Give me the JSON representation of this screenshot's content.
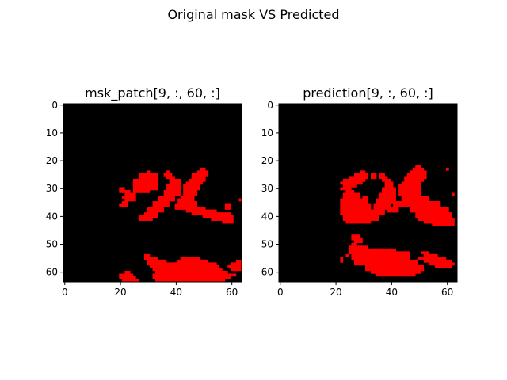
{
  "figure": {
    "suptitle": "Original mask VS Predicted"
  },
  "chart_data": [
    {
      "type": "heatmap",
      "title": "msk_patch[9, :, 60, :]",
      "grid_size": 64,
      "background_color": "#000000",
      "mask_color": "#ff0000",
      "xticks": [
        0,
        20,
        40,
        60
      ],
      "yticks": [
        0,
        10,
        20,
        30,
        40,
        50,
        60
      ],
      "xlim": [
        -0.5,
        63.5
      ],
      "ylim": [
        63.5,
        -0.5
      ],
      "regions": [
        {
          "name": "upper-left-stroke",
          "rows": [
            [
              24,
              25,
              30,
              31
            ],
            [
              25,
              28,
              27,
              34
            ],
            [
              26,
              29,
              32,
              34
            ],
            [
              27,
              31,
              25,
              34
            ],
            [
              28,
              32,
              25,
              31
            ]
          ]
        },
        {
          "name": "left-curl",
          "rows": [
            [
              30,
              31,
              20,
              22
            ],
            [
              31,
              32,
              20,
              24
            ],
            [
              32,
              33,
              22,
              26
            ],
            [
              33,
              34,
              21,
              26
            ],
            [
              34,
              35,
              22,
              26
            ],
            [
              35,
              36,
              21,
              23
            ],
            [
              36,
              37,
              20,
              23
            ]
          ]
        },
        {
          "name": "center-v",
          "rows": [
            [
              24,
              25,
              37,
              38
            ],
            [
              25,
              26,
              36,
              39
            ],
            [
              26,
              27,
              37,
              40
            ],
            [
              27,
              29,
              38,
              42
            ],
            [
              29,
              31,
              37,
              42
            ],
            [
              31,
              33,
              36,
              42
            ],
            [
              33,
              35,
              34,
              40
            ],
            [
              35,
              37,
              32,
              38
            ],
            [
              37,
              39,
              30,
              36
            ],
            [
              39,
              41,
              29,
              34
            ],
            [
              40,
              42,
              27,
              32
            ],
            [
              36,
              38,
              40,
              43
            ],
            [
              34,
              36,
              41,
              45
            ]
          ]
        },
        {
          "name": "upper-right-stroke",
          "rows": [
            [
              23,
              24,
              49,
              51
            ],
            [
              24,
              25,
              48,
              52
            ],
            [
              25,
              26,
              46,
              52
            ],
            [
              26,
              27,
              46,
              51
            ],
            [
              27,
              28,
              45,
              51
            ],
            [
              28,
              29,
              44,
              50
            ],
            [
              29,
              31,
              43,
              49
            ],
            [
              31,
              33,
              43,
              48
            ],
            [
              33,
              35,
              42,
              47
            ],
            [
              35,
              37,
              42,
              48
            ],
            [
              37,
              38,
              43,
              51
            ],
            [
              38,
              39,
              44,
              55
            ],
            [
              39,
              40,
              46,
              60
            ],
            [
              40,
              41,
              50,
              61
            ],
            [
              41,
              42,
              53,
              61
            ],
            [
              42,
              43,
              57,
              61
            ],
            [
              36,
              38,
              58,
              60
            ],
            [
              34,
              35,
              63,
              64
            ]
          ]
        },
        {
          "name": "bottom-band",
          "rows": [
            [
              54,
              55,
              29,
              31
            ],
            [
              55,
              56,
              29,
              34
            ],
            [
              56,
              57,
              30,
              37
            ],
            [
              57,
              58,
              30,
              42
            ],
            [
              58,
              59,
              31,
              47
            ],
            [
              59,
              60,
              32,
              52
            ],
            [
              60,
              61,
              33,
              59
            ],
            [
              61,
              62,
              32,
              62
            ],
            [
              62,
              63,
              32,
              60
            ],
            [
              63,
              64,
              33,
              58
            ],
            [
              55,
              56,
              42,
              49
            ],
            [
              56,
              57,
              41,
              52
            ],
            [
              57,
              58,
              40,
              55
            ],
            [
              58,
              59,
              42,
              56
            ],
            [
              59,
              60,
              48,
              57
            ],
            [
              56,
              57,
              62,
              64
            ],
            [
              57,
              58,
              60,
              64
            ],
            [
              58,
              59,
              59,
              64
            ],
            [
              59,
              60,
              60,
              64
            ]
          ]
        },
        {
          "name": "bottom-left-blob",
          "rows": [
            [
              60,
              61,
              22,
              24
            ],
            [
              61,
              62,
              20,
              25
            ],
            [
              62,
              63,
              20,
              26
            ],
            [
              63,
              64,
              21,
              27
            ]
          ]
        }
      ]
    },
    {
      "type": "heatmap",
      "title": "prediction[9, :, 60, :]",
      "grid_size": 64,
      "background_color": "#000000",
      "mask_color": "#ff0000",
      "xticks": [
        0,
        20,
        40,
        60
      ],
      "yticks": [
        0,
        10,
        20,
        30,
        40,
        50,
        60
      ],
      "xlim": [
        -0.5,
        63.5
      ],
      "ylim": [
        63.5,
        -0.5
      ],
      "regions": [
        {
          "name": "upper-left-stroke",
          "rows": [
            [
              24,
              25,
              29,
              31
            ],
            [
              25,
              26,
              27,
              32
            ],
            [
              26,
              27,
              25,
              32
            ],
            [
              27,
              28,
              23,
              31
            ],
            [
              28,
              29,
              22,
              30
            ],
            [
              29,
              30,
              23,
              28
            ],
            [
              30,
              31,
              22,
              26
            ],
            [
              25,
              27,
              33,
              35
            ]
          ]
        },
        {
          "name": "left-block",
          "rows": [
            [
              31,
              32,
              24,
              27
            ],
            [
              32,
              34,
              23,
              29
            ],
            [
              34,
              36,
              22,
              32
            ],
            [
              36,
              38,
              22,
              33
            ],
            [
              38,
              40,
              22,
              34
            ],
            [
              40,
              42,
              23,
              35
            ],
            [
              42,
              43,
              24,
              33
            ],
            [
              33,
              36,
              30,
              32
            ]
          ]
        },
        {
          "name": "center-v",
          "rows": [
            [
              25,
              26,
              36,
              38
            ],
            [
              26,
              27,
              36,
              39
            ],
            [
              27,
              28,
              37,
              40
            ],
            [
              28,
              30,
              38,
              41
            ],
            [
              30,
              32,
              37,
              42
            ],
            [
              32,
              34,
              36,
              42
            ],
            [
              34,
              36,
              35,
              42
            ],
            [
              36,
              38,
              34,
              40
            ],
            [
              38,
              40,
              33,
              38
            ],
            [
              40,
              42,
              32,
              36
            ],
            [
              37,
              39,
              39,
              43
            ],
            [
              35,
              37,
              41,
              45
            ]
          ]
        },
        {
          "name": "upper-right-stroke",
          "rows": [
            [
              22,
              23,
              49,
              51
            ],
            [
              23,
              24,
              48,
              52
            ],
            [
              24,
              25,
              47,
              53
            ],
            [
              25,
              26,
              46,
              53
            ],
            [
              26,
              27,
              45,
              53
            ],
            [
              27,
              28,
              45,
              52
            ],
            [
              28,
              29,
              44,
              51
            ],
            [
              29,
              31,
              43,
              51
            ],
            [
              31,
              33,
              43,
              51
            ],
            [
              33,
              35,
              44,
              54
            ],
            [
              35,
              37,
              45,
              58
            ],
            [
              37,
              39,
              47,
              61
            ],
            [
              39,
              41,
              49,
              62
            ],
            [
              41,
              42,
              50,
              63
            ],
            [
              42,
              43,
              52,
              63
            ],
            [
              43,
              44,
              55,
              63
            ],
            [
              23,
              24,
              60,
              61
            ],
            [
              32,
              33,
              62,
              63
            ],
            [
              35,
              37,
              54,
              58
            ]
          ]
        },
        {
          "name": "bottom-band",
          "rows": [
            [
              47,
              48,
              26,
              29
            ],
            [
              48,
              49,
              26,
              30
            ],
            [
              49,
              50,
              27,
              30
            ],
            [
              50,
              51,
              26,
              28
            ],
            [
              51,
              52,
              25,
              32
            ],
            [
              52,
              54,
              25,
              42
            ],
            [
              54,
              56,
              26,
              47
            ],
            [
              56,
              58,
              27,
              50
            ],
            [
              58,
              60,
              31,
              52
            ],
            [
              60,
              61,
              33,
              51
            ],
            [
              61,
              62,
              35,
              49
            ],
            [
              52,
              53,
              34,
              38
            ],
            [
              53,
              54,
              38,
              47
            ],
            [
              53,
              54,
              51,
              54
            ],
            [
              54,
              55,
              52,
              57
            ],
            [
              55,
              56,
              50,
              60
            ],
            [
              56,
              57,
              52,
              62
            ],
            [
              57,
              58,
              54,
              63
            ],
            [
              58,
              59,
              56,
              62
            ],
            [
              54,
              55,
              24,
              25
            ]
          ]
        },
        {
          "name": "small-blips",
          "rows": [
            [
              55,
              56,
              22,
              23
            ],
            [
              56,
              57,
              22,
              23
            ],
            [
              57,
              58,
              59,
              60
            ]
          ]
        }
      ]
    }
  ]
}
